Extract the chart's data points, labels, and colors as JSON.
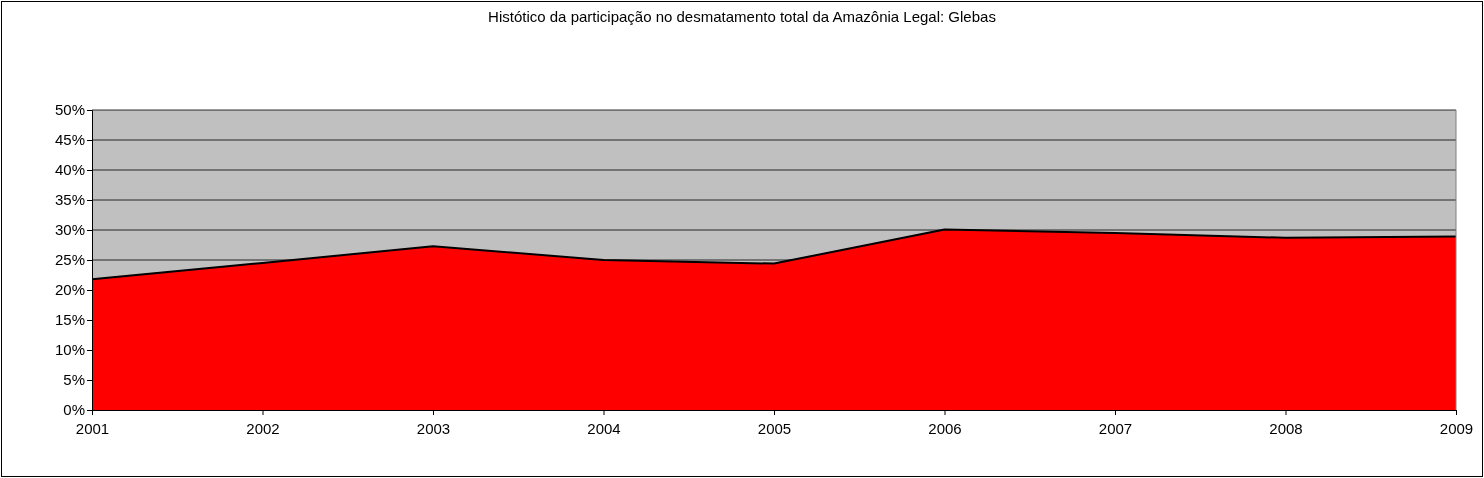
{
  "chart_data": {
    "type": "area",
    "title": "Histótico da participação no desmatamento total da Amazônia Legal: Glebas",
    "categories": [
      "2001",
      "2002",
      "2003",
      "2004",
      "2005",
      "2006",
      "2007",
      "2008",
      "2009"
    ],
    "series": [
      {
        "color": "#ff0000",
        "values": [
          21.8,
          24.5,
          27.3,
          25.0,
          24.4,
          30.1,
          29.5,
          28.7,
          28.9
        ]
      }
    ],
    "ylim": [
      0,
      50
    ],
    "yticks": [
      {
        "value": 0,
        "label": "0%"
      },
      {
        "value": 5,
        "label": "5%"
      },
      {
        "value": 10,
        "label": "10%"
      },
      {
        "value": 15,
        "label": "15%"
      },
      {
        "value": 20,
        "label": "20%"
      },
      {
        "value": 25,
        "label": "25%"
      },
      {
        "value": 30,
        "label": "30%"
      },
      {
        "value": 35,
        "label": "35%"
      },
      {
        "value": 40,
        "label": "40%"
      },
      {
        "value": 45,
        "label": "45%"
      },
      {
        "value": 50,
        "label": "50%"
      }
    ],
    "grid": "y"
  }
}
